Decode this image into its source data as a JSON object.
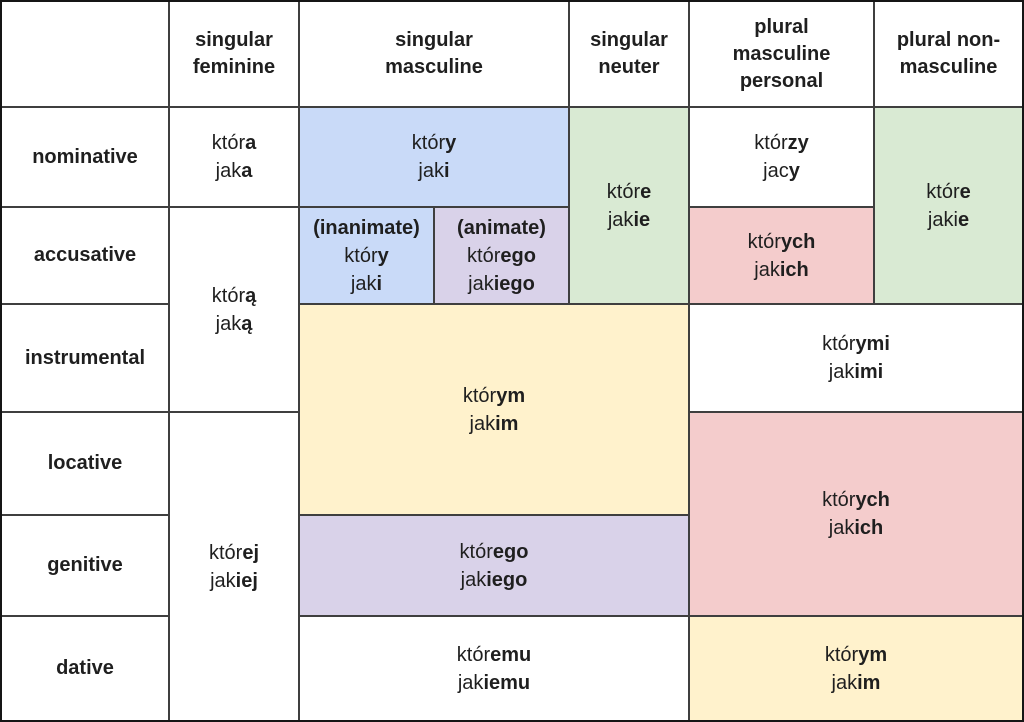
{
  "palette": {
    "white": "#ffffff",
    "blue": "#c9daf8",
    "green": "#d9ead3",
    "purple": "#d9d2e9",
    "red": "#f4cccc",
    "yellow": "#fff2cc",
    "line": "#3f3f3f",
    "text": "#1f1f1f"
  },
  "headers": {
    "singular_feminine": "singular\nfeminine",
    "singular_masculine": "singular\nmasculine",
    "singular_neuter": "singular\nneuter",
    "plural_masculine_personal": "plural\nmasculine\npersonal",
    "plural_non_masculine": "plural non-\nmasculine"
  },
  "cases": [
    "nominative",
    "accusative",
    "instrumental",
    "locative",
    "genitive",
    "dative"
  ],
  "cells": [
    {
      "name": "feminine-nominative",
      "color": "white",
      "lines": [
        {
          "p": "któr",
          "b": "a"
        },
        {
          "p": "jak",
          "b": "a"
        }
      ]
    },
    {
      "name": "masculine-nominative",
      "color": "blue",
      "lines": [
        {
          "p": "któr",
          "b": "y"
        },
        {
          "p": "jak",
          "b": "i"
        }
      ]
    },
    {
      "name": "neuter-nominative-accusative",
      "color": "green",
      "lines": [
        {
          "p": "któr",
          "b": "e"
        },
        {
          "p": "jak",
          "b": "ie"
        }
      ]
    },
    {
      "name": "plural-masc-personal-nominative",
      "color": "white",
      "lines": [
        {
          "p": "któr",
          "b": "zy"
        },
        {
          "p": "jac",
          "b": "y"
        }
      ]
    },
    {
      "name": "plural-non-masc-nominative-accusative",
      "color": "green",
      "lines": [
        {
          "p": "któr",
          "b": "e"
        },
        {
          "p": "jaki",
          "b": "e"
        }
      ]
    },
    {
      "name": "feminine-accusative-instrumental",
      "color": "white",
      "lines": [
        {
          "p": "któr",
          "b": "ą"
        },
        {
          "p": "jak",
          "b": "ą"
        }
      ]
    },
    {
      "name": "masculine-accusative-inanimate",
      "color": "blue",
      "lines": [
        {
          "p": "",
          "b": "(inanimate)"
        },
        {
          "p": "któr",
          "b": "y"
        },
        {
          "p": "jak",
          "b": "i"
        }
      ]
    },
    {
      "name": "masculine-accusative-animate",
      "color": "purple",
      "lines": [
        {
          "p": "",
          "b": "(animate)"
        },
        {
          "p": "któr",
          "b": "ego"
        },
        {
          "p": "jak",
          "b": "iego"
        }
      ]
    },
    {
      "name": "plural-masc-personal-accusative",
      "color": "red",
      "lines": [
        {
          "p": "któr",
          "b": "ych"
        },
        {
          "p": "jak",
          "b": "ich"
        }
      ]
    },
    {
      "name": "masc-neuter-instrumental-locative",
      "color": "yellow",
      "lines": [
        {
          "p": "któr",
          "b": "ym"
        },
        {
          "p": "jak",
          "b": "im"
        }
      ]
    },
    {
      "name": "plural-instrumental",
      "color": "white",
      "lines": [
        {
          "p": "któr",
          "b": "ymi"
        },
        {
          "p": "jak",
          "b": "imi"
        }
      ]
    },
    {
      "name": "feminine-locative-genitive-dative",
      "color": "white",
      "lines": [
        {
          "p": "któr",
          "b": "ej"
        },
        {
          "p": "jak",
          "b": "iej"
        }
      ]
    },
    {
      "name": "plural-locative-genitive",
      "color": "red",
      "lines": [
        {
          "p": "któr",
          "b": "ych"
        },
        {
          "p": "jak",
          "b": "ich"
        }
      ]
    },
    {
      "name": "masc-neuter-genitive",
      "color": "purple",
      "lines": [
        {
          "p": "któr",
          "b": "ego"
        },
        {
          "p": "jak",
          "b": "iego"
        }
      ]
    },
    {
      "name": "masc-neuter-dative",
      "color": "white",
      "lines": [
        {
          "p": "któr",
          "b": "emu"
        },
        {
          "p": "jak",
          "b": "iemu"
        }
      ]
    },
    {
      "name": "plural-dative",
      "color": "yellow",
      "lines": [
        {
          "p": "któr",
          "b": "ym"
        },
        {
          "p": "jak",
          "b": "im"
        }
      ]
    }
  ]
}
